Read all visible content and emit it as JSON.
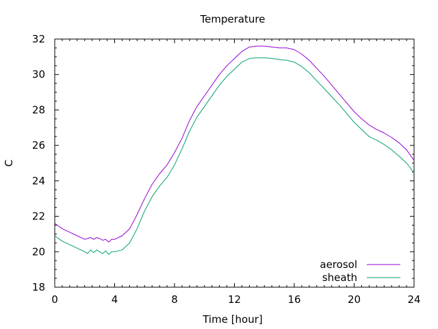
{
  "chart_data": {
    "type": "line",
    "title": "Temperature",
    "xlabel": "Time [hour]",
    "ylabel": "C",
    "xlim": [
      0,
      24
    ],
    "ylim": [
      18,
      32
    ],
    "xticks": [
      0,
      4,
      8,
      12,
      16,
      20,
      24
    ],
    "yticks": [
      18,
      20,
      22,
      24,
      26,
      28,
      30,
      32
    ],
    "grid": false,
    "legend_position": "bottom-right",
    "series": [
      {
        "name": "aerosol",
        "color": "#9400d3",
        "x": [
          0,
          0.5,
          1,
          1.5,
          2,
          2.2,
          2.4,
          2.6,
          2.8,
          3,
          3.2,
          3.4,
          3.6,
          3.8,
          4,
          4.5,
          5,
          5.5,
          6,
          6.5,
          7,
          7.5,
          8,
          8.5,
          9,
          9.5,
          10,
          10.5,
          11,
          11.5,
          12,
          12.5,
          13,
          13.5,
          14,
          14.5,
          15,
          15.5,
          16,
          16.5,
          17,
          17.5,
          18,
          18.5,
          19,
          19.5,
          20,
          20.5,
          21,
          21.5,
          22,
          22.5,
          23,
          23.5,
          24
        ],
        "values": [
          21.6,
          21.3,
          21.1,
          20.9,
          20.7,
          20.75,
          20.8,
          20.7,
          20.8,
          20.75,
          20.65,
          20.7,
          20.55,
          20.7,
          20.7,
          20.9,
          21.3,
          22.1,
          23.0,
          23.8,
          24.4,
          24.9,
          25.6,
          26.4,
          27.4,
          28.2,
          28.8,
          29.4,
          30.0,
          30.5,
          30.9,
          31.3,
          31.55,
          31.6,
          31.6,
          31.55,
          31.5,
          31.5,
          31.4,
          31.15,
          30.8,
          30.35,
          29.9,
          29.4,
          28.9,
          28.4,
          27.9,
          27.5,
          27.15,
          26.9,
          26.7,
          26.45,
          26.15,
          25.75,
          25.15
        ]
      },
      {
        "name": "sheath",
        "color": "#009e73",
        "x": [
          0,
          0.5,
          1,
          1.5,
          2,
          2.2,
          2.4,
          2.6,
          2.8,
          3,
          3.2,
          3.4,
          3.6,
          3.8,
          4,
          4.5,
          5,
          5.5,
          6,
          6.5,
          7,
          7.5,
          8,
          8.5,
          9,
          9.5,
          10,
          10.5,
          11,
          11.5,
          12,
          12.5,
          13,
          13.5,
          14,
          14.5,
          15,
          15.5,
          16,
          16.5,
          17,
          17.5,
          18,
          18.5,
          19,
          19.5,
          20,
          20.5,
          21,
          21.5,
          22,
          22.5,
          23,
          23.5,
          24
        ],
        "values": [
          20.9,
          20.6,
          20.4,
          20.2,
          20.0,
          19.9,
          20.1,
          19.95,
          20.1,
          20.0,
          19.9,
          20.05,
          19.85,
          20.0,
          20.0,
          20.1,
          20.5,
          21.3,
          22.3,
          23.1,
          23.7,
          24.2,
          24.9,
          25.8,
          26.8,
          27.6,
          28.2,
          28.8,
          29.4,
          29.9,
          30.3,
          30.7,
          30.9,
          30.95,
          30.95,
          30.9,
          30.85,
          30.8,
          30.7,
          30.45,
          30.1,
          29.65,
          29.2,
          28.75,
          28.3,
          27.8,
          27.3,
          26.9,
          26.5,
          26.3,
          26.05,
          25.75,
          25.4,
          25.0,
          24.45
        ]
      }
    ]
  }
}
